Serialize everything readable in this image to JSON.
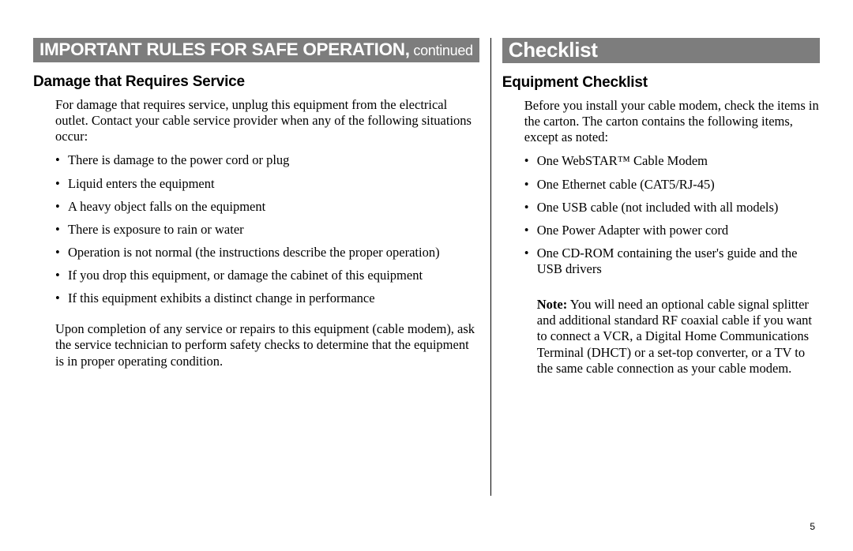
{
  "left": {
    "header_main": "IMPORTANT RULES FOR SAFE OPERATION,",
    "header_cont": " continued",
    "subhead": "Damage that Requires Service",
    "intro": "For damage that requires service, unplug this equipment from the electrical outlet. Contact your cable service provider when any of the following situations occur:",
    "bullets": [
      "There is damage to the power cord or plug",
      "Liquid enters the equipment",
      "A heavy object falls on the equipment",
      "There is exposure to rain or water",
      "Operation is not normal (the instructions describe the proper operation)",
      "If you drop this equipment, or damage the cabinet of this equipment",
      "If this equipment exhibits a distinct change in performance"
    ],
    "after": "Upon completion of any service or repairs to this equipment (cable modem), ask the service technician to perform safety checks to determine that the equipment is in proper operating condition."
  },
  "right": {
    "header": "Checklist",
    "subhead": "Equipment Checklist",
    "intro": "Before you install your cable modem, check the items in the carton. The carton contains the following items, except as noted:",
    "bullets": [
      "One WebSTAR™ Cable Modem",
      "One Ethernet cable (CAT5/RJ-45)",
      "One USB cable (not included with all models)",
      "One Power Adapter with power cord",
      "One CD-ROM containing the user's guide and the USB drivers"
    ],
    "note_label": "Note:",
    "note_body": "  You will need an optional cable signal splitter and additional standard RF coaxial cable if you want to connect a VCR, a Digital Home Communications Terminal (DHCT) or a set-top converter, or a TV to the same cable connection as your cable modem."
  },
  "page_number": "5"
}
